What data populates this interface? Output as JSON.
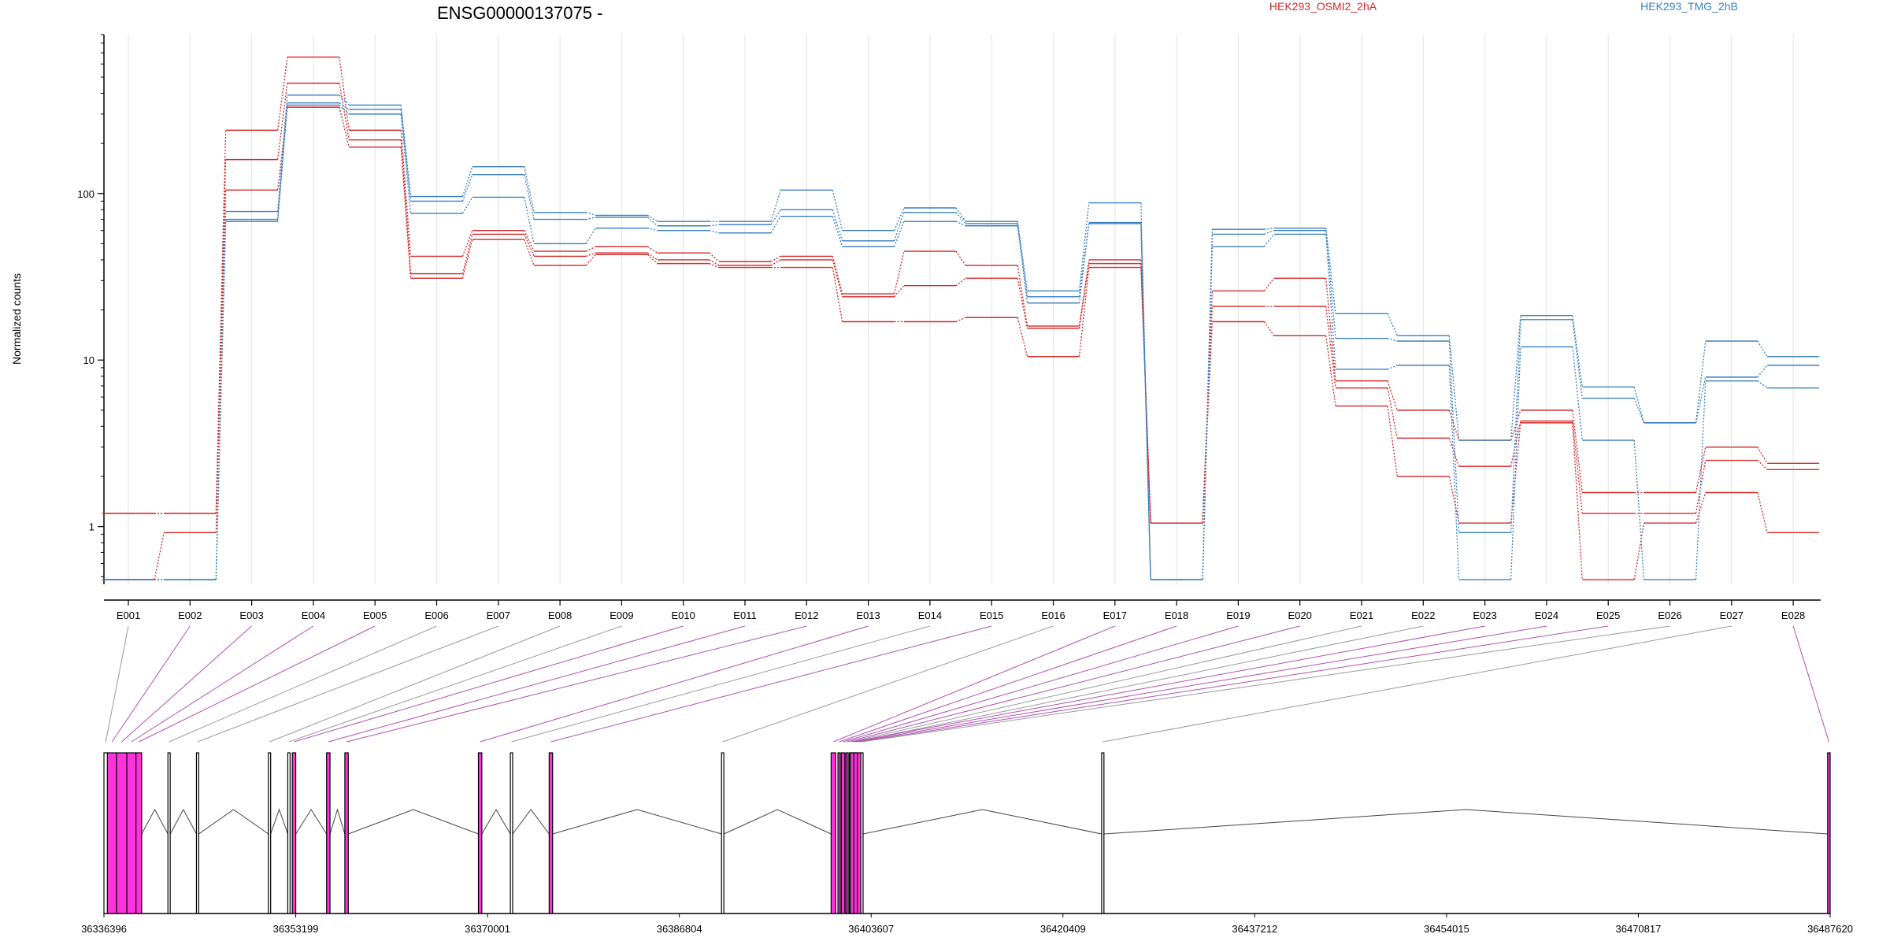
{
  "chart_data": {
    "type": "line",
    "title": "ENSG00000137075 -",
    "ylabel": "Normalized counts",
    "xlabel": "",
    "yscale": "log",
    "ylim": [
      0.45,
      900
    ],
    "yticks": [
      1,
      10,
      100
    ],
    "ytick_labels": [
      "1",
      "10",
      "100"
    ],
    "grid": "vertical",
    "legend_placement": "top",
    "colors": {
      "HEK293_OSMI2_2hA": "#d62728",
      "HEK293_TMG_2hB": "#3a7fc0",
      "connector_plain": "#9a9a9a",
      "connector_highlight": "#b050b0",
      "exon_highlight": "#ff33dd"
    },
    "categories": [
      "E001",
      "E002",
      "E003",
      "E004",
      "E005",
      "E006",
      "E007",
      "E008",
      "E009",
      "E010",
      "E011",
      "E012",
      "E013",
      "E014",
      "E015",
      "E016",
      "E017",
      "E018",
      "E019",
      "E020",
      "E021",
      "E022",
      "E023",
      "E024",
      "E025",
      "E026",
      "E027",
      "E028"
    ],
    "legend": [
      {
        "name": "HEK293_OSMI2_2hA",
        "color": "#d62728"
      },
      {
        "name": "HEK293_TMG_2hB",
        "color": "#3a7fc0"
      }
    ],
    "series": [
      {
        "name": "HEK293_OSMI2_2hA",
        "color": "#d62728",
        "values": [
          1.2,
          1.2,
          240,
          660,
          240,
          42,
          60,
          45,
          48,
          44,
          39,
          42,
          25,
          45,
          37,
          16,
          40,
          1.05,
          26,
          31,
          7.5,
          5,
          3.3,
          5,
          1.6,
          1.6,
          3,
          2.4
        ]
      },
      {
        "name": "HEK293_OSMI2_2hA",
        "color": "#d62728",
        "values": [
          0.48,
          0.92,
          160,
          460,
          210,
          33,
          57,
          42,
          44,
          40,
          37,
          40,
          24,
          28,
          31,
          15.5,
          38,
          1.05,
          21,
          21,
          6.8,
          3.4,
          2.3,
          4.3,
          1.2,
          1.2,
          2.5,
          2.2
        ]
      },
      {
        "name": "HEK293_OSMI2_2hA",
        "color": "#d62728",
        "values": [
          1.2,
          1.2,
          105,
          330,
          190,
          31,
          53,
          37,
          43,
          38,
          36,
          36,
          17,
          17,
          18,
          10.5,
          36,
          1.05,
          17,
          14,
          5.3,
          2,
          1.05,
          4.2,
          0.48,
          1.05,
          1.6,
          0.92
        ]
      },
      {
        "name": "HEK293_TMG_2hB",
        "color": "#3a7fc0",
        "values": [
          0.48,
          0.48,
          78,
          390,
          340,
          96,
          145,
          77,
          74,
          68,
          68,
          105,
          60,
          82,
          68,
          26,
          88,
          0.48,
          61,
          62,
          19,
          14,
          3.3,
          18.5,
          6.9,
          4.2,
          13,
          10.5
        ]
      },
      {
        "name": "HEK293_TMG_2hB",
        "color": "#3a7fc0",
        "values": [
          0.48,
          0.48,
          70,
          350,
          320,
          90,
          130,
          70,
          72,
          64,
          65,
          80,
          52,
          77,
          66,
          24,
          67,
          0.48,
          57,
          60,
          13.5,
          13,
          0.92,
          17.5,
          5.9,
          4.2,
          7.9,
          9.3
        ]
      },
      {
        "name": "HEK293_TMG_2hB",
        "color": "#3a7fc0",
        "values": [
          0.48,
          0.48,
          68,
          340,
          300,
          76,
          95,
          50,
          62,
          60,
          58,
          73,
          48,
          68,
          64,
          22,
          66,
          0.48,
          48,
          57,
          8.8,
          9.3,
          0.48,
          12,
          3.3,
          0.48,
          7.5,
          6.8
        ]
      }
    ],
    "gene_track": {
      "coordinate_labels": [
        "36336396",
        "36353199",
        "36370001",
        "36386804",
        "36403607",
        "36420409",
        "36437212",
        "36454015",
        "36470817",
        "36487620"
      ],
      "exons": [
        {
          "id": "E001",
          "start": 36336396,
          "end": 36336700,
          "highlight": false
        },
        {
          "id": "E002",
          "start": 36336700,
          "end": 36337500,
          "highlight": true
        },
        {
          "id": "E003",
          "start": 36337500,
          "end": 36338400,
          "highlight": true
        },
        {
          "id": "E004",
          "start": 36338400,
          "end": 36339200,
          "highlight": true
        },
        {
          "id": "E005",
          "start": 36339200,
          "end": 36339700,
          "highlight": true
        },
        {
          "id": "E006",
          "start": 36342000,
          "end": 36342200,
          "highlight": false
        },
        {
          "id": "E007",
          "start": 36344500,
          "end": 36344700,
          "highlight": false
        },
        {
          "id": "E008",
          "start": 36350800,
          "end": 36351000,
          "highlight": false
        },
        {
          "id": "E009",
          "start": 36352500,
          "end": 36352700,
          "highlight": false
        },
        {
          "id": "E010",
          "start": 36352900,
          "end": 36353200,
          "highlight": true
        },
        {
          "id": "E011",
          "start": 36355900,
          "end": 36356200,
          "highlight": true
        },
        {
          "id": "E012",
          "start": 36357500,
          "end": 36357800,
          "highlight": true
        },
        {
          "id": "E013",
          "start": 36369200,
          "end": 36369500,
          "highlight": true
        },
        {
          "id": "E014",
          "start": 36372000,
          "end": 36372200,
          "highlight": false
        },
        {
          "id": "E015",
          "start": 36375400,
          "end": 36375700,
          "highlight": true
        },
        {
          "id": "E016",
          "start": 36390500,
          "end": 36390700,
          "highlight": false
        },
        {
          "id": "E017",
          "start": 36400100,
          "end": 36400500,
          "highlight": true
        },
        {
          "id": "E018",
          "start": 36400700,
          "end": 36400900,
          "highlight": true
        },
        {
          "id": "E019",
          "start": 36401000,
          "end": 36401300,
          "highlight": true
        },
        {
          "id": "E020",
          "start": 36401400,
          "end": 36401600,
          "highlight": true
        },
        {
          "id": "E021",
          "start": 36401700,
          "end": 36401900,
          "highlight": false
        },
        {
          "id": "E022",
          "start": 36402000,
          "end": 36402300,
          "highlight": false
        },
        {
          "id": "E023",
          "start": 36401800,
          "end": 36402100,
          "highlight": true
        },
        {
          "id": "E024",
          "start": 36402100,
          "end": 36402400,
          "highlight": true
        },
        {
          "id": "E025",
          "start": 36402400,
          "end": 36402700,
          "highlight": true
        },
        {
          "id": "E026",
          "start": 36402700,
          "end": 36402900,
          "highlight": false
        },
        {
          "id": "E027",
          "start": 36423800,
          "end": 36424000,
          "highlight": false
        },
        {
          "id": "E028",
          "start": 36487400,
          "end": 36487620,
          "highlight": true
        }
      ]
    }
  }
}
